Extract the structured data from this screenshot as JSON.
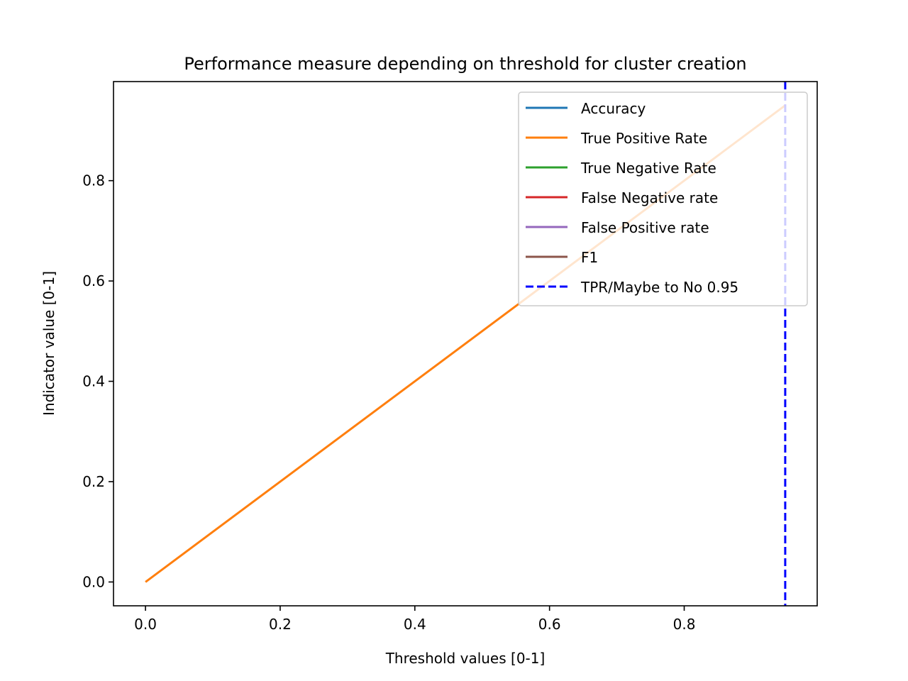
{
  "chart_data": {
    "type": "line",
    "title": "Performance measure depending on threshold for cluster creation",
    "xlabel": "Threshold values [0-1]",
    "ylabel": "Indicator value [0-1]",
    "xlim": [
      -0.0475,
      0.9975
    ],
    "ylim": [
      -0.0475,
      0.9975
    ],
    "xticks": [
      0.0,
      0.2,
      0.4,
      0.6,
      0.8
    ],
    "xtick_labels": [
      "0.0",
      "0.2",
      "0.4",
      "0.6",
      "0.8"
    ],
    "yticks": [
      0.0,
      0.2,
      0.4,
      0.6,
      0.8
    ],
    "ytick_labels": [
      "0.0",
      "0.2",
      "0.4",
      "0.6",
      "0.8"
    ],
    "grid": false,
    "legend_position": "upper right",
    "series": [
      {
        "name": "Accuracy",
        "color": "#1f77b4",
        "style": "solid",
        "x": [],
        "y": []
      },
      {
        "name": "True Positive Rate",
        "color": "#ff7f0e",
        "style": "solid",
        "x": [
          0.0,
          0.95
        ],
        "y": [
          0.0,
          0.95
        ]
      },
      {
        "name": "True Negative Rate",
        "color": "#2ca02c",
        "style": "solid",
        "x": [],
        "y": []
      },
      {
        "name": "False Negative rate",
        "color": "#d62728",
        "style": "solid",
        "x": [],
        "y": []
      },
      {
        "name": "False Positive rate",
        "color": "#9467bd",
        "style": "solid",
        "x": [],
        "y": []
      },
      {
        "name": "F1",
        "color": "#8c564b",
        "style": "solid",
        "x": [],
        "y": []
      },
      {
        "name": "TPR/Maybe to No 0.95",
        "color": "#0000ff",
        "style": "dashed",
        "vline_x": 0.95
      }
    ]
  }
}
